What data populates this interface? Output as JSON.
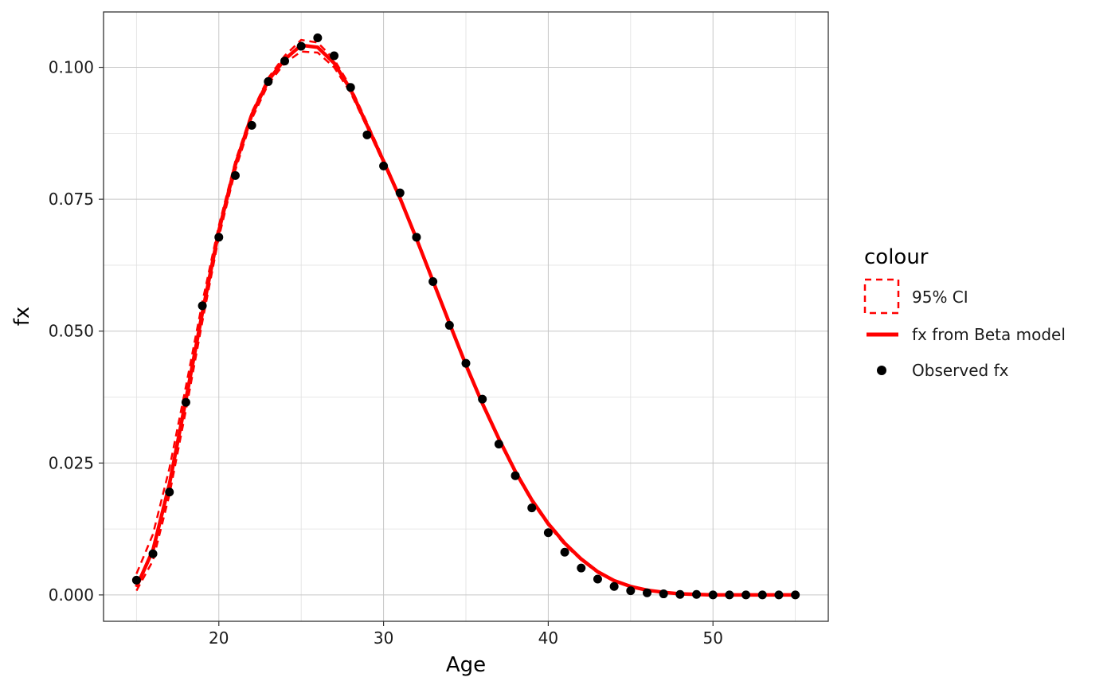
{
  "chart_data": {
    "type": "line",
    "xlabel": "Age",
    "ylabel": "fx",
    "xlim": [
      13,
      57
    ],
    "ylim": [
      -0.005,
      0.1105
    ],
    "x_ticks": [
      20,
      30,
      40,
      50
    ],
    "x_tick_labels": [
      "20",
      "30",
      "40",
      "50"
    ],
    "x_minor_ticks": [
      15,
      25,
      35,
      45,
      55
    ],
    "y_ticks": [
      0.0,
      0.025,
      0.05,
      0.075,
      0.1
    ],
    "y_tick_labels": [
      "0.000",
      "0.025",
      "0.050",
      "0.075",
      "0.100"
    ],
    "y_minor_ticks": [
      0.0125,
      0.0375,
      0.0625,
      0.0875
    ],
    "grid": true,
    "legend": {
      "title": "colour",
      "placement": "right",
      "entries": [
        "95% CI",
        "fx from Beta model",
        "Observed fx"
      ]
    },
    "colors": {
      "model": "#ff0000",
      "ci": "#ff0000",
      "observed": "#000000"
    },
    "observed": {
      "name": "Observed fx",
      "x": [
        15,
        16,
        17,
        18,
        19,
        20,
        21,
        22,
        23,
        24,
        25,
        26,
        27,
        28,
        29,
        30,
        31,
        32,
        33,
        34,
        35,
        36,
        37,
        38,
        39,
        40,
        41,
        42,
        43,
        44,
        45,
        46,
        47,
        48,
        49,
        50,
        51,
        52,
        53,
        54,
        55
      ],
      "y": [
        0.0028,
        0.0078,
        0.0195,
        0.0365,
        0.0548,
        0.0678,
        0.0795,
        0.089,
        0.0973,
        0.1012,
        0.104,
        0.1056,
        0.1022,
        0.0962,
        0.0872,
        0.0813,
        0.0762,
        0.0678,
        0.0594,
        0.0511,
        0.0439,
        0.0371,
        0.0286,
        0.0226,
        0.0165,
        0.0118,
        0.0081,
        0.0051,
        0.003,
        0.0016,
        0.0008,
        0.0004,
        0.0002,
        0.0001,
        0.0001,
        0.0,
        0.0,
        0.0,
        0.0,
        0.0,
        0.0
      ]
    },
    "model": {
      "name": "fx from Beta model",
      "x": [
        15,
        16,
        17,
        18,
        19,
        20,
        21,
        22,
        23,
        24,
        25,
        26,
        27,
        28,
        29,
        30,
        31,
        32,
        33,
        34,
        35,
        36,
        37,
        38,
        39,
        40,
        41,
        42,
        43,
        44,
        45,
        46,
        47,
        48,
        49,
        50,
        51,
        52,
        53,
        54,
        55
      ],
      "y": [
        0.0015,
        0.0085,
        0.021,
        0.037,
        0.0535,
        0.069,
        0.0815,
        0.091,
        0.0975,
        0.1015,
        0.1042,
        0.1038,
        0.1008,
        0.0958,
        0.089,
        0.0822,
        0.0752,
        0.0675,
        0.0595,
        0.0515,
        0.0436,
        0.0363,
        0.0296,
        0.0234,
        0.018,
        0.0135,
        0.0098,
        0.0068,
        0.0044,
        0.0027,
        0.0016,
        0.0009,
        0.0005,
        0.0002,
        0.0001,
        0.0,
        0.0,
        0.0,
        0.0,
        0.0,
        0.0
      ]
    },
    "ci_upper": {
      "name": "95% CI",
      "x": [
        15,
        16,
        17,
        18,
        19,
        20,
        21,
        22,
        23,
        24,
        25,
        26,
        27,
        28,
        29,
        30,
        31,
        32,
        33,
        34,
        35,
        36,
        37,
        38,
        39,
        40,
        41,
        42,
        43,
        44,
        45,
        46,
        47,
        48,
        49,
        50,
        51,
        52,
        53,
        54,
        55
      ],
      "y": [
        0.004,
        0.0115,
        0.024,
        0.0395,
        0.0555,
        0.07,
        0.0822,
        0.0915,
        0.098,
        0.1022,
        0.1052,
        0.1047,
        0.1015,
        0.0963,
        0.0895,
        0.0826,
        0.0755,
        0.0678,
        0.0597,
        0.0517,
        0.0438,
        0.0365,
        0.0298,
        0.0236,
        0.0182,
        0.0137,
        0.01,
        0.0069,
        0.0045,
        0.0028,
        0.0017,
        0.0009,
        0.0005,
        0.0002,
        0.0001,
        0.0,
        0.0,
        0.0,
        0.0,
        0.0,
        0.0
      ]
    },
    "ci_lower": {
      "name": "95% CI",
      "x": [
        15,
        16,
        17,
        18,
        19,
        20,
        21,
        22,
        23,
        24,
        25,
        26,
        27,
        28,
        29,
        30,
        31,
        32,
        33,
        34,
        35,
        36,
        37,
        38,
        39,
        40,
        41,
        42,
        43,
        44,
        45,
        46,
        47,
        48,
        49,
        50,
        51,
        52,
        53,
        54,
        55
      ],
      "y": [
        0.0008,
        0.0065,
        0.019,
        0.035,
        0.0518,
        0.0678,
        0.0805,
        0.0902,
        0.0968,
        0.1008,
        0.103,
        0.1028,
        0.1,
        0.0952,
        0.0886,
        0.0818,
        0.0749,
        0.0672,
        0.0592,
        0.0512,
        0.0433,
        0.036,
        0.0293,
        0.0231,
        0.0177,
        0.0132,
        0.0095,
        0.0066,
        0.0042,
        0.0026,
        0.0015,
        0.0008,
        0.0004,
        0.0002,
        0.0001,
        0.0,
        0.0,
        0.0,
        0.0,
        0.0,
        0.0
      ]
    }
  }
}
